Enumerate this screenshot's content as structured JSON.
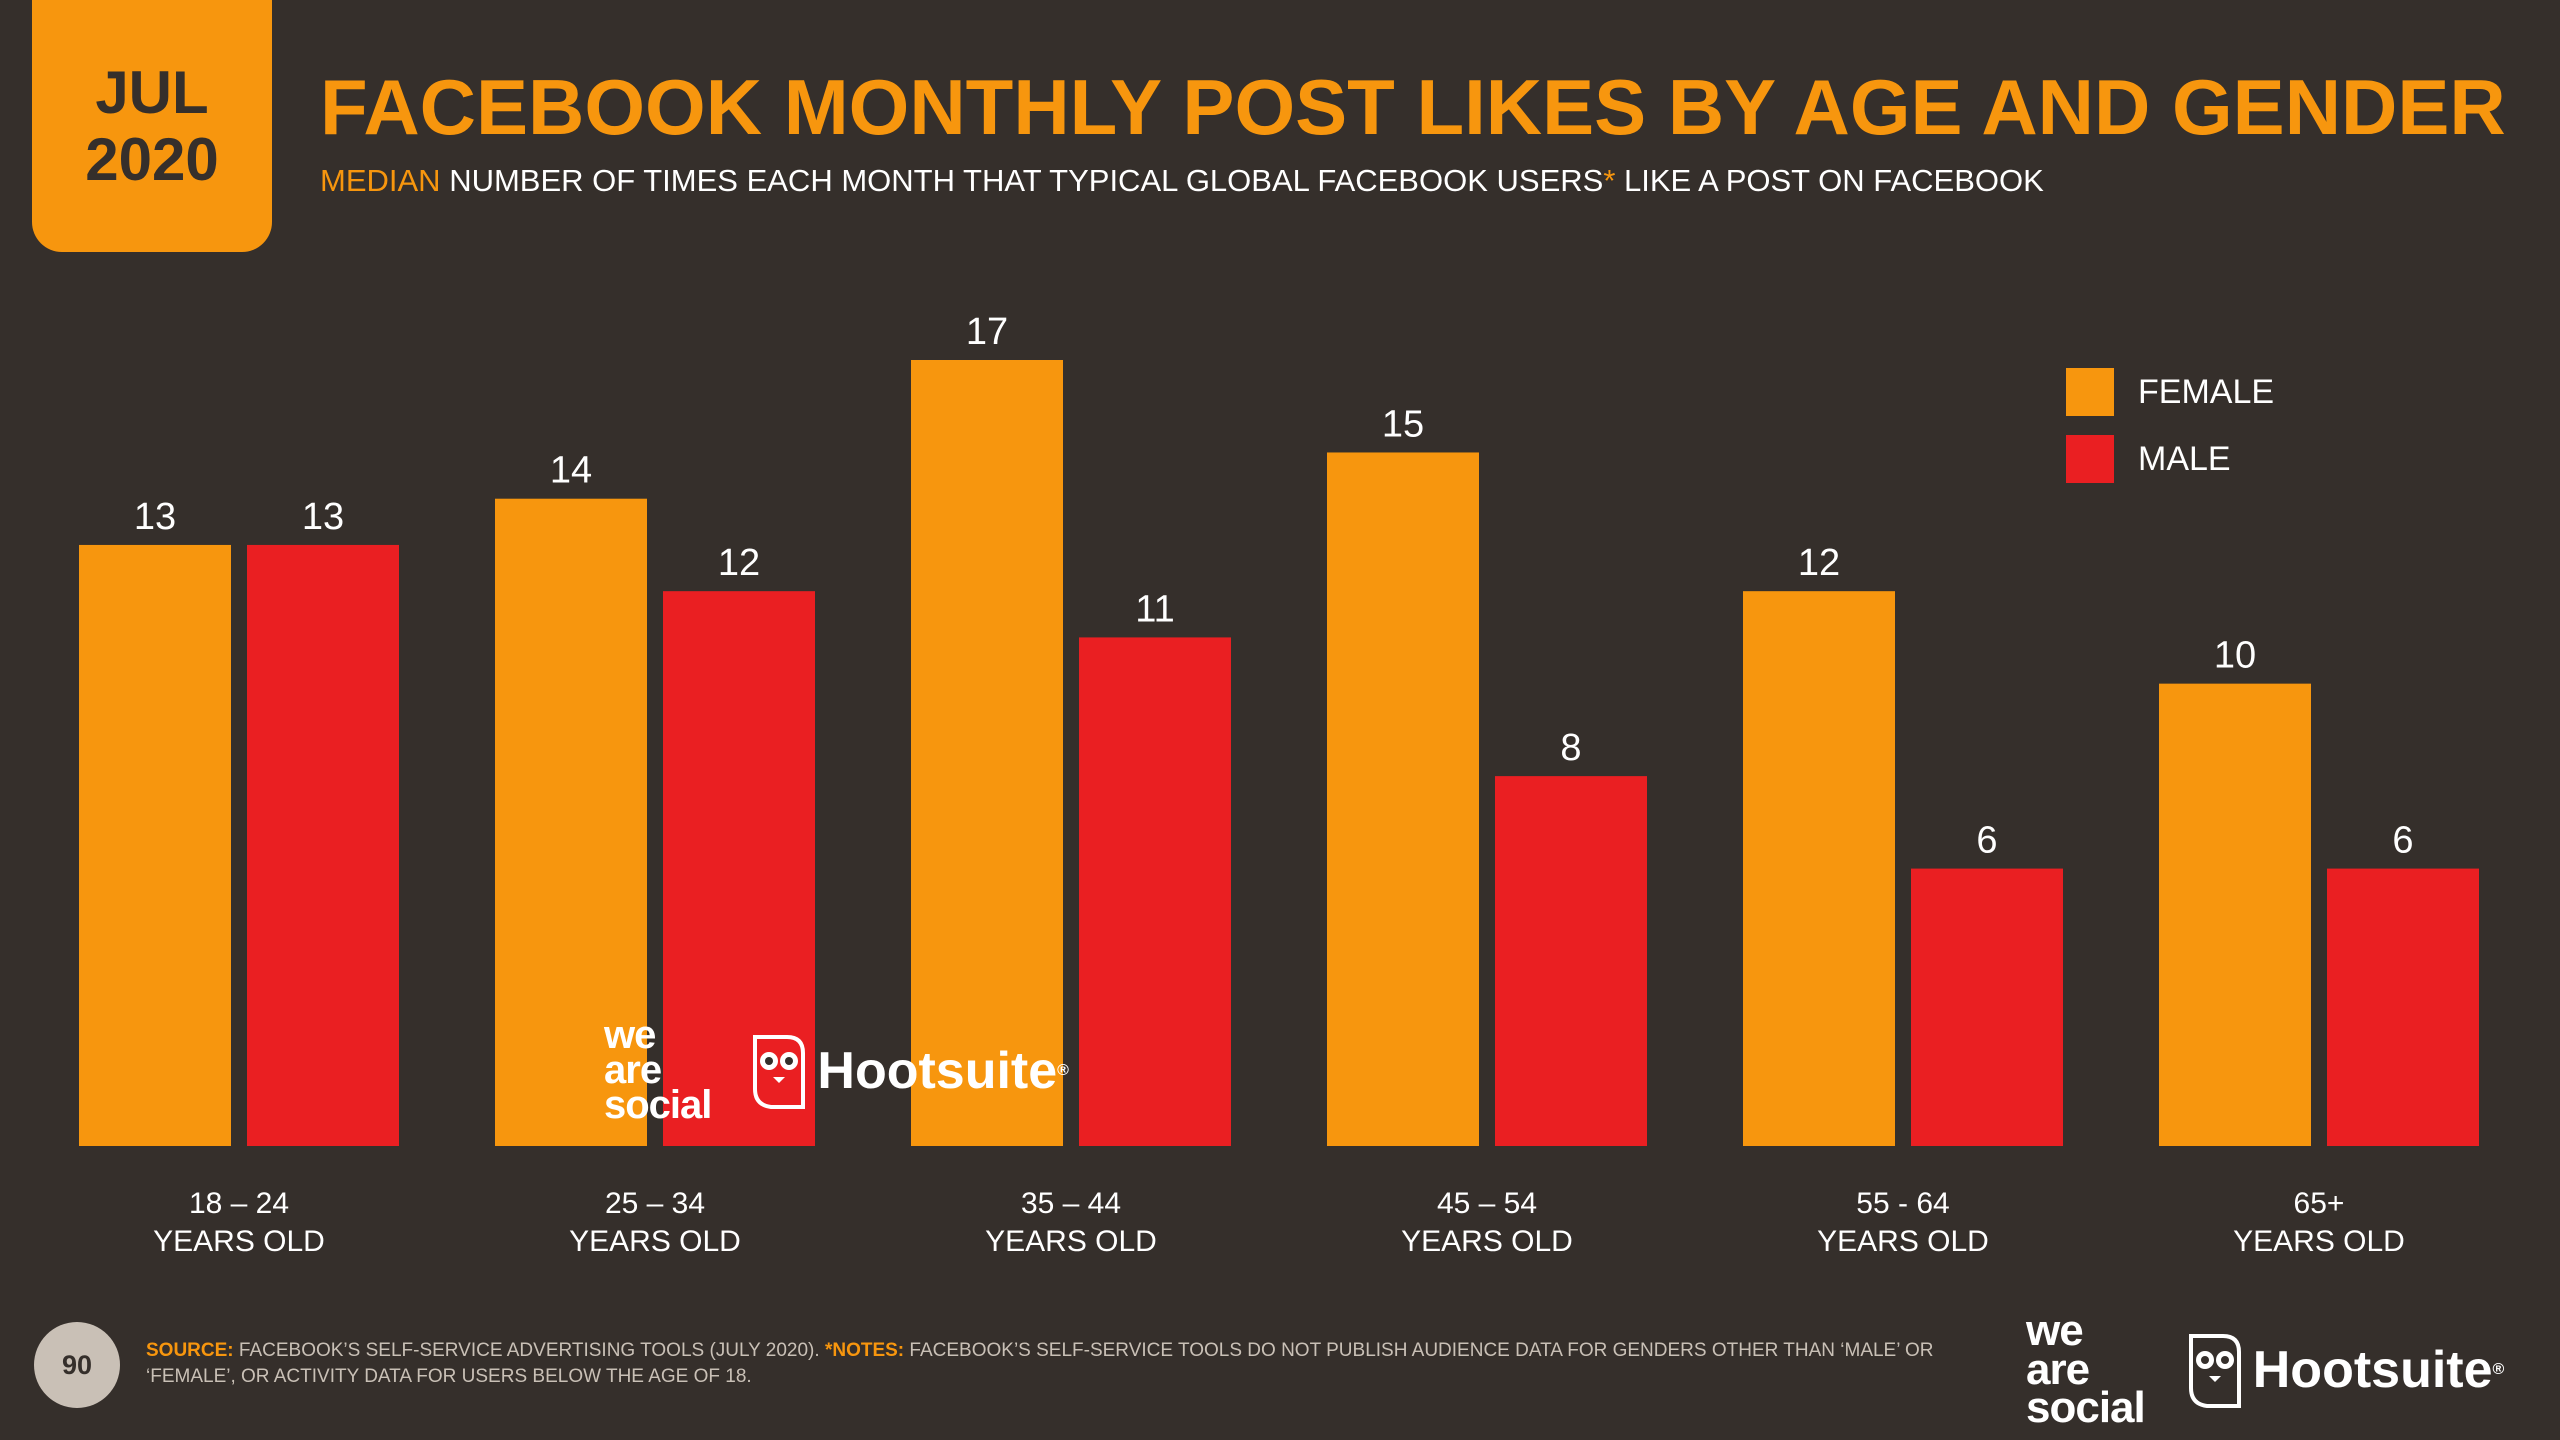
{
  "badge": {
    "month": "JUL",
    "year": "2020"
  },
  "header": {
    "title": "FACEBOOK MONTHLY POST LIKES BY AGE AND GENDER",
    "subtitle_highlight": "MEDIAN",
    "subtitle_main": " NUMBER OF TIMES EACH MONTH THAT TYPICAL GLOBAL FACEBOOK USERS",
    "subtitle_asterisk": "*",
    "subtitle_end": " LIKE A POST ON FACEBOOK"
  },
  "colors": {
    "female": "#f7960e",
    "male": "#ea1f22",
    "background": "#352f2b",
    "text": "#ffffff"
  },
  "chart_data": {
    "type": "bar",
    "title": "FACEBOOK MONTHLY POST LIKES BY AGE AND GENDER",
    "xlabel": "",
    "ylabel": "",
    "ylim": [
      0,
      17
    ],
    "grid": false,
    "legend_position": "top-right",
    "categories": [
      [
        "18 – 24",
        "YEARS OLD"
      ],
      [
        "25 – 34",
        "YEARS OLD"
      ],
      [
        "35 – 44",
        "YEARS OLD"
      ],
      [
        "45 – 54",
        "YEARS OLD"
      ],
      [
        "55 - 64",
        "YEARS OLD"
      ],
      [
        "65+",
        "YEARS OLD"
      ]
    ],
    "series": [
      {
        "name": "FEMALE",
        "color": "#f7960e",
        "values": [
          13,
          14,
          17,
          15,
          12,
          10
        ]
      },
      {
        "name": "MALE",
        "color": "#ea1f22",
        "values": [
          13,
          12,
          11,
          8,
          6,
          6
        ]
      }
    ]
  },
  "legend": [
    {
      "label": "FEMALE",
      "color": "#f7960e"
    },
    {
      "label": "MALE",
      "color": "#ea1f22"
    }
  ],
  "logos": {
    "we_are_social": [
      "we",
      "are",
      "social"
    ],
    "hootsuite": "Hootsuite",
    "registered": "®"
  },
  "footer": {
    "page_number": "90",
    "source_label": "SOURCE:",
    "source_text": " FACEBOOK’S SELF-SERVICE ADVERTISING TOOLS (JULY 2020). ",
    "notes_label": "*NOTES:",
    "notes_text": " FACEBOOK’S SELF-SERVICE TOOLS DO NOT PUBLISH AUDIENCE DATA FOR GENDERS OTHER THAN ‘MALE’ OR ‘FEMALE’, OR ACTIVITY DATA FOR USERS BELOW THE AGE OF 18."
  }
}
